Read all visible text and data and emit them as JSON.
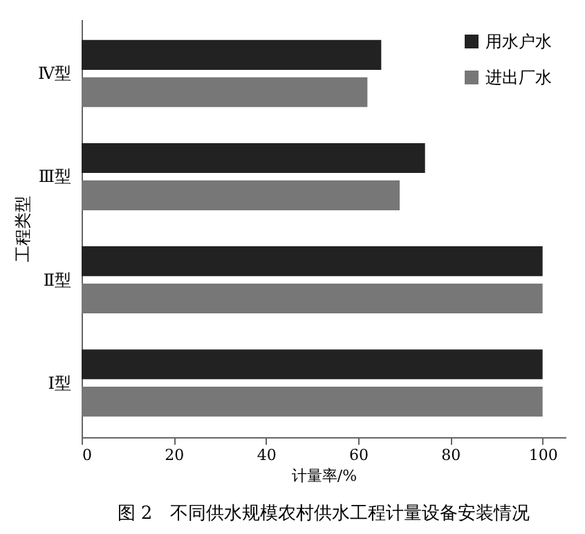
{
  "chart_data": {
    "type": "bar",
    "orientation": "horizontal",
    "ylabel": "工程类型",
    "xlabel": "计量率/%",
    "categories": [
      "Ⅳ型",
      "Ⅲ型",
      "Ⅱ型",
      "Ⅰ型"
    ],
    "series": [
      {
        "name": "用水户水",
        "color": "#222222",
        "values": [
          65,
          74.5,
          100,
          100
        ]
      },
      {
        "name": "进出厂水",
        "color": "#777777",
        "values": [
          62,
          69,
          100,
          100
        ]
      }
    ],
    "xlim": [
      0,
      105
    ],
    "xticks": [
      0,
      20,
      40,
      60,
      80,
      100
    ],
    "grid": false,
    "legend": "top right",
    "annotations": [
      "图 2　不同供水规模农村供水工程计量设备安装情况"
    ]
  }
}
